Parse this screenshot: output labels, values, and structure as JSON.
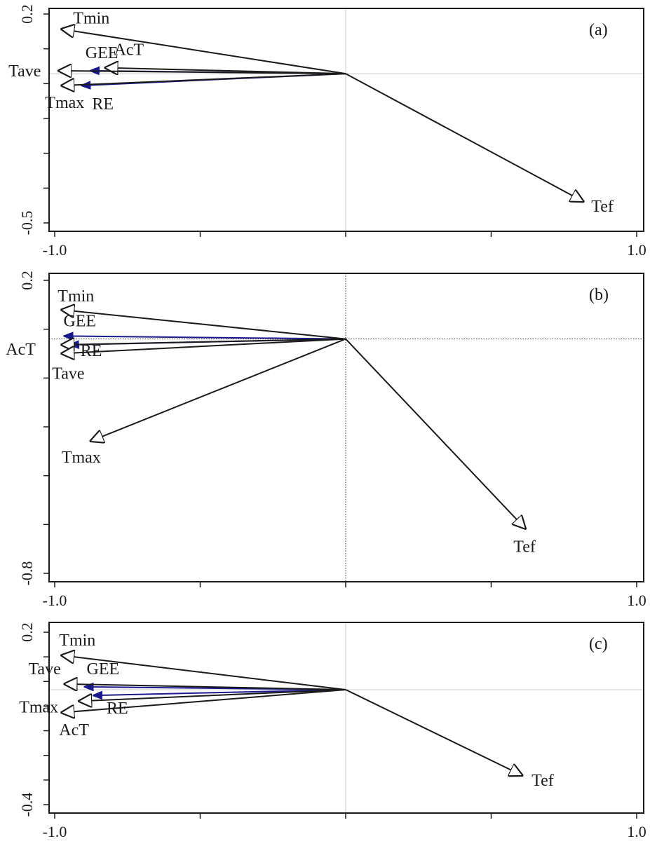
{
  "chart_data": [
    {
      "type": "biplot",
      "panel_label": "(a)",
      "x_ticks": [
        "-1.0",
        "1.0"
      ],
      "y_ticks": [
        "0.2",
        "-0.5"
      ],
      "xlim": [
        -1.0,
        1.0
      ],
      "ylim": [
        -0.5,
        0.2
      ],
      "origin_lines": "solid-light",
      "species": [
        {
          "name": "GEE",
          "x": -0.88,
          "y": 0.01
        },
        {
          "name": "RE",
          "x": -0.91,
          "y": -0.04
        }
      ],
      "env": [
        {
          "name": "Tmin",
          "x": -0.98,
          "y": 0.15
        },
        {
          "name": "AcT",
          "x": -0.83,
          "y": 0.02
        },
        {
          "name": "Tave",
          "x": -0.99,
          "y": 0.01
        },
        {
          "name": "Tmax",
          "x": -0.98,
          "y": -0.04
        },
        {
          "name": "Tef",
          "x": 0.82,
          "y": -0.43
        }
      ],
      "colors": {
        "species": "#1a1a8c",
        "env": "#1a1a1a"
      }
    },
    {
      "type": "biplot",
      "panel_label": "(b)",
      "x_ticks": [
        "-1.0",
        "1.0"
      ],
      "y_ticks": [
        "0.2",
        "-0.8"
      ],
      "xlim": [
        -1.0,
        1.0
      ],
      "ylim": [
        -0.8,
        0.2
      ],
      "origin_lines": "dotted",
      "species": [
        {
          "name": "GEE",
          "x": -0.97,
          "y": 0.01
        },
        {
          "name": "RE",
          "x": -0.95,
          "y": -0.02
        }
      ],
      "env": [
        {
          "name": "Tmin",
          "x": -0.98,
          "y": 0.1
        },
        {
          "name": "AcT",
          "x": -0.98,
          "y": -0.02
        },
        {
          "name": "Tave",
          "x": -0.98,
          "y": -0.05
        },
        {
          "name": "Tmax",
          "x": -0.88,
          "y": -0.35
        },
        {
          "name": "Tef",
          "x": 0.62,
          "y": -0.65
        }
      ],
      "colors": {
        "species": "#1a1a8c",
        "env": "#1a1a1a"
      }
    },
    {
      "type": "biplot",
      "panel_label": "(c)",
      "x_ticks": [
        "-1.0",
        "1.0"
      ],
      "y_ticks": [
        "0.2",
        "-0.4"
      ],
      "xlim": [
        -1.0,
        1.0
      ],
      "ylim": [
        -0.4,
        0.2
      ],
      "origin_lines": "solid-light",
      "species": [
        {
          "name": "GEE",
          "x": -0.9,
          "y": 0.01
        },
        {
          "name": "RE",
          "x": -0.87,
          "y": -0.02
        }
      ],
      "env": [
        {
          "name": "Tmin",
          "x": -0.98,
          "y": 0.12
        },
        {
          "name": "Tave",
          "x": -0.97,
          "y": 0.02
        },
        {
          "name": "Tmax",
          "x": -0.92,
          "y": -0.04
        },
        {
          "name": "AcT",
          "x": -0.98,
          "y": -0.08
        },
        {
          "name": "Tef",
          "x": 0.61,
          "y": -0.3
        }
      ],
      "colors": {
        "species": "#1a1a8c",
        "env": "#1a1a1a"
      }
    }
  ]
}
